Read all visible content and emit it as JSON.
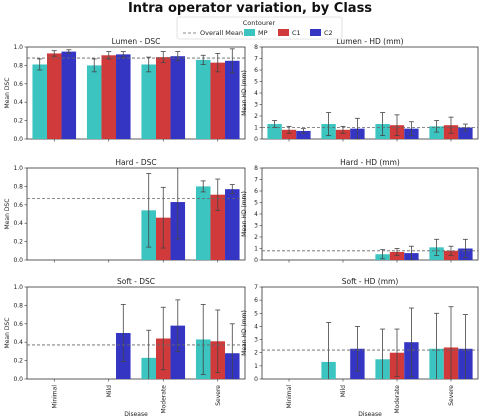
{
  "figure_title": "Intra operator variation, by Class",
  "legend": {
    "title": "Contourer",
    "mean_label": "Overall Mean",
    "entries": [
      {
        "name": "MP",
        "color": "#3cc4c0"
      },
      {
        "name": "C1",
        "color": "#d03a3a"
      },
      {
        "name": "C2",
        "color": "#3535c4"
      }
    ]
  },
  "xlabel": "Disease",
  "categories": [
    "Minimal",
    "Mild",
    "Moderate",
    "Severe"
  ],
  "chart_data": [
    {
      "type": "bar",
      "title": "Lumen - DSC",
      "ylabel": "Mean DSC",
      "ylim": [
        0,
        1.0
      ],
      "yticks": [
        0.0,
        0.2,
        0.4,
        0.6,
        0.8,
        1.0
      ],
      "overall_mean": 0.88,
      "categories": [
        "Minimal",
        "Mild",
        "Moderate",
        "Severe"
      ],
      "series": [
        {
          "name": "MP",
          "values": [
            0.81,
            0.8,
            0.81,
            0.86
          ],
          "err": [
            0.06,
            0.07,
            0.08,
            0.05
          ]
        },
        {
          "name": "C1",
          "values": [
            0.93,
            0.91,
            0.89,
            0.83
          ],
          "err": [
            0.03,
            0.04,
            0.06,
            0.1
          ]
        },
        {
          "name": "C2",
          "values": [
            0.95,
            0.92,
            0.9,
            0.85
          ],
          "err": [
            0.02,
            0.03,
            0.05,
            0.13
          ]
        }
      ]
    },
    {
      "type": "bar",
      "title": "Lumen - HD (mm)",
      "ylabel": "Mean HD (mm)",
      "ylim": [
        0,
        8
      ],
      "yticks": [
        0,
        1,
        2,
        3,
        4,
        5,
        6,
        7,
        8
      ],
      "overall_mean": 1.0,
      "categories": [
        "Minimal",
        "Mild",
        "Moderate",
        "Severe"
      ],
      "series": [
        {
          "name": "MP",
          "values": [
            1.3,
            1.3,
            1.3,
            1.1
          ],
          "err": [
            0.3,
            1.0,
            1.0,
            0.5
          ]
        },
        {
          "name": "C1",
          "values": [
            0.8,
            0.8,
            1.2,
            1.2
          ],
          "err": [
            0.3,
            0.3,
            0.9,
            0.7
          ]
        },
        {
          "name": "C2",
          "values": [
            0.7,
            0.9,
            0.9,
            1.0
          ],
          "err": [
            0.2,
            0.9,
            0.6,
            0.3
          ]
        }
      ]
    },
    {
      "type": "bar",
      "title": "Hard - DSC",
      "ylabel": "Mean DSC",
      "ylim": [
        0,
        1.0
      ],
      "yticks": [
        0.0,
        0.2,
        0.4,
        0.6,
        0.8,
        1.0
      ],
      "overall_mean": 0.67,
      "categories": [
        "Minimal",
        "Mild",
        "Moderate",
        "Severe"
      ],
      "series": [
        {
          "name": "MP",
          "values": [
            0,
            0,
            0.54,
            0.8
          ],
          "err": [
            0,
            0,
            0.4,
            0.06
          ]
        },
        {
          "name": "C1",
          "values": [
            0,
            0,
            0.46,
            0.71
          ],
          "err": [
            0,
            0,
            0.33,
            0.17
          ]
        },
        {
          "name": "C2",
          "values": [
            0,
            0,
            0.63,
            0.77
          ],
          "err": [
            0,
            0,
            0.4,
            0.05
          ]
        }
      ]
    },
    {
      "type": "bar",
      "title": "Hard - HD (mm)",
      "ylabel": "Mean HD (mm)",
      "ylim": [
        0,
        8
      ],
      "yticks": [
        0,
        1,
        2,
        3,
        4,
        5,
        6,
        7,
        8
      ],
      "overall_mean": 0.8,
      "categories": [
        "Minimal",
        "Mild",
        "Moderate",
        "Severe"
      ],
      "series": [
        {
          "name": "MP",
          "values": [
            0,
            0,
            0.5,
            1.1
          ],
          "err": [
            0,
            0,
            0.4,
            0.7
          ]
        },
        {
          "name": "C1",
          "values": [
            0,
            0,
            0.7,
            0.8
          ],
          "err": [
            0,
            0,
            0.3,
            0.4
          ]
        },
        {
          "name": "C2",
          "values": [
            0,
            0,
            0.6,
            1.0
          ],
          "err": [
            0,
            0,
            0.6,
            0.8
          ]
        }
      ]
    },
    {
      "type": "bar",
      "title": "Soft - DSC",
      "ylabel": "Mean DSC",
      "ylim": [
        0,
        1.0
      ],
      "yticks": [
        0.0,
        0.2,
        0.4,
        0.6,
        0.8,
        1.0
      ],
      "overall_mean": 0.37,
      "categories": [
        "Minimal",
        "Mild",
        "Moderate",
        "Severe"
      ],
      "series": [
        {
          "name": "MP",
          "values": [
            0,
            0,
            0.23,
            0.43
          ],
          "err": [
            0,
            0,
            0.3,
            0.38
          ]
        },
        {
          "name": "C1",
          "values": [
            0,
            0,
            0.44,
            0.41
          ],
          "err": [
            0,
            0,
            0.34,
            0.34
          ]
        },
        {
          "name": "C2",
          "values": [
            0,
            0.5,
            0.58,
            0.28
          ],
          "err": [
            0,
            0.31,
            0.28,
            0.32
          ]
        }
      ]
    },
    {
      "type": "bar",
      "title": "Soft - HD (mm)",
      "ylabel": "Mean HD (mm)",
      "ylim": [
        0,
        7
      ],
      "yticks": [
        0,
        1,
        2,
        3,
        4,
        5,
        6,
        7
      ],
      "overall_mean": 2.2,
      "categories": [
        "Minimal",
        "Mild",
        "Moderate",
        "Severe"
      ],
      "series": [
        {
          "name": "MP",
          "values": [
            0,
            1.3,
            1.5,
            2.3
          ],
          "err": [
            0,
            3.0,
            2.3,
            2.7
          ]
        },
        {
          "name": "C1",
          "values": [
            0,
            0,
            2.0,
            2.4
          ],
          "err": [
            0,
            0,
            1.8,
            3.1
          ]
        },
        {
          "name": "C2",
          "values": [
            0,
            2.3,
            2.8,
            2.3
          ],
          "err": [
            0,
            1.7,
            2.6,
            2.6
          ]
        }
      ]
    }
  ]
}
